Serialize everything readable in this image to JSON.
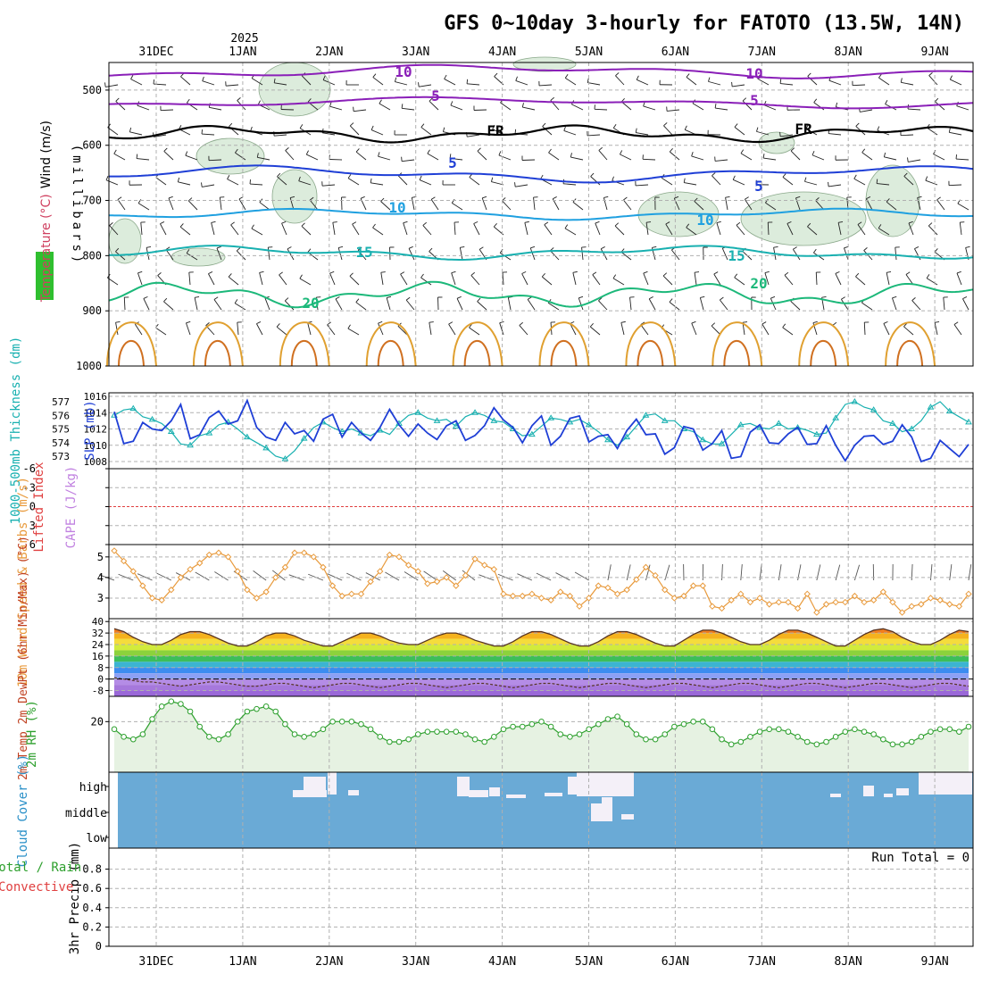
{
  "title": "GFS 0~10day 3-hourly for FATOTO (13.5W, 14N)",
  "colors": {
    "bg": "#ffffff",
    "axis": "#000000",
    "grid": "#b0b0b0",
    "purple": "#8a1fb8",
    "blue": "#1f3fd6",
    "sky": "#1fa0e0",
    "teal": "#18b0b0",
    "green": "#1cb87a",
    "orange": "#e0a030",
    "darkorange": "#d07020",
    "rhfill": "#dcecdc",
    "cloud": "#6aaad6",
    "cloudwhite": "#f4f0f8",
    "windorange": "#e89a3c",
    "lifted": "#e04040",
    "cape": "#c080e0",
    "rh2m": "#2ea02e",
    "rh2mfill": "#e6f2e2"
  },
  "chart_data": {
    "type": "meteogram",
    "year_label": "2025",
    "date_labels": [
      "31DEC",
      "1JAN",
      "2JAN",
      "3JAN",
      "4JAN",
      "5JAN",
      "6JAN",
      "7JAN",
      "8JAN",
      "9JAN"
    ],
    "run_total_label": "Run Total = 0",
    "panels": [
      {
        "id": "upper-air",
        "ylabel_parts": [
          {
            "text": "RH (%)",
            "color": "#1a8f1a"
          },
          {
            "text": "Temperature (°C)",
            "color": "#d04060"
          },
          {
            "text": "Wind (m/s)",
            "color": "#000000"
          }
        ],
        "ylabel2": "(millibars)",
        "yticks": [
          "500",
          "600",
          "700",
          "800",
          "900",
          "1000"
        ],
        "ylim": [
          450,
          1000
        ],
        "contour_labels": [
          {
            "text": "10",
            "color": "#8a1fb8"
          },
          {
            "text": "10",
            "color": "#8a1fb8"
          },
          {
            "text": "5",
            "color": "#8a1fb8"
          },
          {
            "text": "5",
            "color": "#8a1fb8"
          },
          {
            "text": "FR",
            "color": "#000000"
          },
          {
            "text": "FR",
            "color": "#000000"
          },
          {
            "text": "5",
            "color": "#1f3fd6"
          },
          {
            "text": "5",
            "color": "#1f3fd6"
          },
          {
            "text": "10",
            "color": "#1fa0e0"
          },
          {
            "text": "10",
            "color": "#1fa0e0"
          },
          {
            "text": "15",
            "color": "#18b0b0"
          },
          {
            "text": "15",
            "color": "#18b0b0"
          },
          {
            "text": "20",
            "color": "#1cb87a"
          },
          {
            "text": "20",
            "color": "#1cb87a"
          }
        ]
      },
      {
        "id": "slp-thickness",
        "ylabel": "1000-500mb Thickness (dm)",
        "ylabel_right": "SLP (mb)",
        "yticks_left": [
          "577",
          "576",
          "575",
          "574",
          "573"
        ],
        "yticks_right": [
          "1016",
          "1014",
          "1012",
          "1010",
          "1008"
        ],
        "series": [
          {
            "name": "SLP (mb)",
            "values": [
              1014.1,
              1010.2,
              1010.5,
              1012.8,
              1012.0,
              1011.8,
              1013.0,
              1015.0,
              1010.8,
              1011.3,
              1013.4,
              1014.2,
              1012.6,
              1013.0,
              1015.5,
              1012.2,
              1011.0,
              1010.6,
              1012.8,
              1011.4,
              1011.8,
              1010.5,
              1013.2,
              1013.8,
              1011.0,
              1012.8,
              1011.5,
              1010.6,
              1012.2,
              1014.4,
              1012.5,
              1011.1,
              1012.6,
              1011.5,
              1010.7,
              1012.4,
              1013.0,
              1010.6,
              1011.2,
              1012.4,
              1014.6,
              1013.1,
              1012.2,
              1010.3,
              1012.4,
              1013.6,
              1010.0,
              1011.1,
              1013.3,
              1013.6,
              1010.4,
              1011.1,
              1011.3,
              1009.6,
              1011.8,
              1013.2,
              1011.3,
              1011.4,
              1008.9,
              1009.7,
              1012.3,
              1012.0,
              1009.4,
              1010.2,
              1011.8,
              1008.4,
              1008.6,
              1011.6,
              1012.5,
              1010.3,
              1010.2,
              1011.4,
              1012.2,
              1010.1,
              1010.2,
              1012.4,
              1010.0,
              1008.1,
              1010.0,
              1011.1,
              1011.2,
              1010.1,
              1010.5,
              1012.5,
              1011.0,
              1008.0,
              1008.4,
              1010.6,
              1009.6,
              1008.6,
              1010.1
            ]
          },
          {
            "name": "1000-500mb Thickness (dm)",
            "values": [
              576.0,
              576.4,
              576.5,
              575.9,
              575.7,
              575.4,
              574.8,
              573.9,
              573.8,
              574.5,
              574.7,
              575.3,
              575.5,
              575.0,
              574.4,
              574.0,
              573.6,
              573.0,
              572.8,
              573.4,
              574.3,
              575.1,
              575.5,
              575.1,
              574.8,
              575.0,
              574.7,
              574.5,
              574.9,
              574.6,
              575.4,
              576.0,
              576.2,
              575.8,
              575.6,
              575.7,
              575.2,
              575.9,
              576.2,
              576.0,
              575.6,
              575.5,
              575.0,
              574.5,
              574.6,
              575.2,
              575.8,
              575.7,
              575.5,
              575.7,
              575.3,
              574.8,
              574.2,
              573.8,
              574.4,
              575.2,
              576.0,
              576.1,
              575.6,
              575.6,
              575.0,
              574.8,
              574.2,
              573.9,
              573.9,
              574.6,
              575.3,
              575.4,
              575.1,
              575.0,
              575.4,
              575.0,
              575.1,
              574.9,
              574.6,
              574.7,
              575.8,
              576.8,
              577.0,
              576.6,
              576.4,
              575.6,
              575.4,
              574.8,
              575.0,
              575.6,
              576.6,
              577.0,
              576.3,
              575.9,
              575.5
            ]
          }
        ]
      },
      {
        "id": "lifted-cape",
        "ylabel_left": "Lifted Index",
        "ylabel_right": "CAPE (J/kg)",
        "yticks": [
          "-6",
          "-3",
          "0",
          "3",
          "6"
        ]
      },
      {
        "id": "wind10m",
        "ylabel": "10m Wind Speed & Barbs (m/s)",
        "yticks": [
          "5",
          "4",
          "3"
        ],
        "series": [
          {
            "name": "10m Wind Speed",
            "values": [
              5.3,
              4.8,
              4.3,
              3.6,
              3.0,
              2.9,
              3.4,
              4.0,
              4.4,
              4.7,
              5.1,
              5.2,
              5.0,
              4.3,
              3.4,
              3.0,
              3.3,
              4.0,
              4.5,
              5.2,
              5.2,
              5.0,
              4.5,
              3.6,
              3.1,
              3.2,
              3.2,
              3.8,
              4.3,
              5.1,
              5.0,
              4.6,
              4.3,
              3.7,
              3.8,
              4.0,
              3.6,
              4.1,
              4.9,
              4.6,
              4.4,
              3.2,
              3.1,
              3.1,
              3.2,
              3.0,
              2.9,
              3.3,
              3.1,
              2.6,
              3.0,
              3.6,
              3.5,
              3.2,
              3.4,
              3.9,
              4.5,
              4.1,
              3.4,
              3.0,
              3.1,
              3.6,
              3.6,
              2.6,
              2.5,
              2.9,
              3.2,
              2.8,
              3.0,
              2.7,
              2.8,
              2.8,
              2.5,
              3.2,
              2.3,
              2.7,
              2.8,
              2.8,
              3.1,
              2.8,
              2.9,
              3.3,
              2.8,
              2.3,
              2.6,
              2.7,
              3.0,
              2.9,
              2.7,
              2.6,
              3.2
            ]
          }
        ]
      },
      {
        "id": "temp2m",
        "ylabel": "2m Temp 2m DewPt (6hr Min/Max) (°C)",
        "yticks": [
          "40",
          "32",
          "24",
          "16",
          "8",
          "0",
          "-8"
        ],
        "series": [
          {
            "name": "2m Temp",
            "values": [
              35,
              33,
              29,
              26,
              24,
              24,
              27,
              31,
              33,
              33,
              31,
              28,
              25,
              23,
              23,
              26,
              30,
              32,
              32,
              30,
              27,
              25,
              23,
              23,
              26,
              29,
              32,
              32,
              30,
              27,
              25,
              24,
              24,
              27,
              30,
              32,
              32,
              30,
              27,
              25,
              23,
              23,
              26,
              30,
              33,
              33,
              31,
              28,
              25,
              23,
              23,
              26,
              30,
              33,
              33,
              31,
              28,
              25,
              23,
              23,
              27,
              31,
              34,
              34,
              32,
              29,
              26,
              24,
              24,
              27,
              31,
              34,
              34,
              32,
              29,
              26,
              23,
              23,
              27,
              31,
              34,
              35,
              33,
              29,
              26,
              24,
              24,
              27,
              31,
              34,
              33
            ]
          },
          {
            "name": "2m DewPt",
            "values": [
              1,
              0,
              -1,
              -2,
              -2,
              -3,
              -4,
              -5,
              -4,
              -3,
              -2,
              -2,
              -3,
              -4,
              -5,
              -5,
              -4,
              -3,
              -3,
              -4,
              -5,
              -6,
              -5,
              -4,
              -3,
              -3,
              -4,
              -5,
              -6,
              -5,
              -4,
              -3,
              -3,
              -4,
              -5,
              -6,
              -5,
              -4,
              -3,
              -3,
              -4,
              -5,
              -6,
              -5,
              -4,
              -3,
              -3,
              -4,
              -5,
              -6,
              -5,
              -4,
              -3,
              -3,
              -4,
              -5,
              -6,
              -5,
              -4,
              -3,
              -3,
              -4,
              -5,
              -6,
              -5,
              -4,
              -3,
              -3,
              -4,
              -5,
              -6,
              -5,
              -4,
              -3,
              -3,
              -4,
              -5,
              -6,
              -5,
              -4,
              -3,
              -3,
              -4,
              -5,
              -6,
              -5,
              -4,
              -3,
              -3,
              -4,
              -5
            ]
          }
        ]
      },
      {
        "id": "rh2m",
        "ylabel": "2m RH (%)",
        "yticks": [
          "20"
        ],
        "series": [
          {
            "name": "2m RH",
            "values": [
              17,
              14,
              13,
              15,
              21,
              26,
              28,
              27,
              24,
              18,
              14,
              13,
              15,
              20,
              24,
              25,
              26,
              24,
              19,
              15,
              14,
              15,
              17,
              20,
              20,
              20,
              19,
              17,
              14,
              12,
              12,
              13,
              15,
              16,
              16,
              16,
              16,
              15,
              13,
              12,
              14,
              17,
              18,
              18,
              19,
              20,
              18,
              15,
              14,
              15,
              17,
              19,
              21,
              22,
              19,
              15,
              13,
              13,
              15,
              18,
              19,
              20,
              20,
              17,
              13,
              11,
              12,
              14,
              16,
              17,
              17,
              16,
              14,
              12,
              11,
              12,
              14,
              16,
              17,
              16,
              15,
              13,
              11,
              11,
              12,
              14,
              16,
              17,
              17,
              16,
              18
            ]
          }
        ]
      },
      {
        "id": "cloud",
        "ylabel": "Cloud Cover (%)",
        "yticks": [
          "high",
          "middle",
          "low"
        ]
      },
      {
        "id": "precip",
        "ylabel": "3hr Precip (mm)",
        "ylabel_left": "Total / Rain",
        "ylabel_left2": "Convective",
        "yticks": [
          "0.8",
          "0.6",
          "0.4",
          "0.2",
          "0"
        ],
        "ylim": [
          0,
          1.0
        ],
        "values": []
      }
    ]
  }
}
